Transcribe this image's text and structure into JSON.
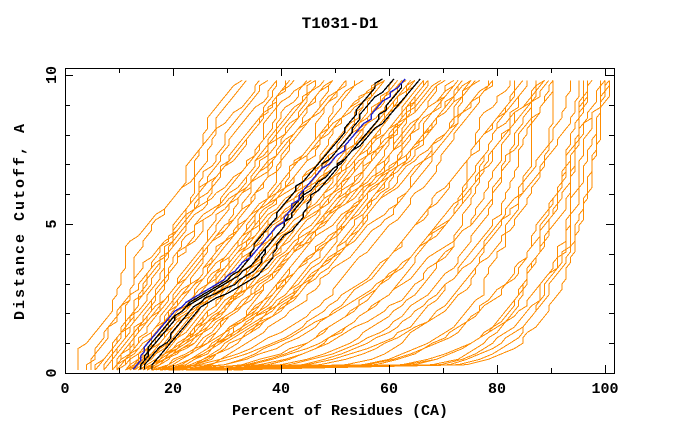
{
  "chart_data": {
    "type": "line",
    "title": "T1031-D1",
    "xlabel": "Percent of Residues (CA)",
    "ylabel": "Distance Cutoff, A",
    "xlim": [
      0,
      100
    ],
    "ylim": [
      0,
      10
    ],
    "grid": false,
    "legend": "none",
    "x_major_ticks": [
      0,
      20,
      40,
      60,
      80,
      100
    ],
    "x_minor_ticks": [
      10,
      30,
      50,
      70,
      90
    ],
    "y_major_ticks": [
      0,
      5,
      10
    ],
    "y_minor_ticks": [
      1,
      2,
      3,
      4,
      6,
      7,
      8,
      9
    ],
    "x_tick_labels": [
      "0",
      "20",
      "40",
      "60",
      "80",
      "100"
    ],
    "y_tick_labels": [
      "0",
      "5",
      "10"
    ],
    "colors": {
      "model_curves": "#ff8c00",
      "highlighted_curves": "#000000",
      "best_curve": "#2222cc",
      "axis": "#000000",
      "background": "#ffffff"
    },
    "bundle_base_points": [
      [
        0.12,
        13
      ],
      [
        0.5,
        14
      ],
      [
        1,
        16
      ],
      [
        1.5,
        18
      ],
      [
        2,
        20.5
      ],
      [
        2.5,
        24
      ],
      [
        3,
        29.5
      ],
      [
        3.5,
        33.5
      ],
      [
        4,
        35.5
      ],
      [
        4.5,
        37.5
      ],
      [
        5,
        40
      ],
      [
        5.5,
        41.5
      ],
      [
        6,
        43
      ],
      [
        6.5,
        45.5
      ],
      [
        7,
        48
      ],
      [
        7.5,
        51
      ],
      [
        8,
        53.5
      ],
      [
        8.5,
        56
      ],
      [
        9,
        58
      ],
      [
        9.4,
        60
      ],
      [
        9.9,
        62.5
      ]
    ],
    "highlighted_offsets": [
      [
        0.8,
        -3.2
      ],
      [
        1.2,
        -1.0
      ],
      [
        2.2,
        1.6
      ],
      [
        3.2,
        3.4
      ]
    ],
    "best_offsets": [
      [
        -0.8,
        0.6
      ]
    ],
    "model_curves": [
      [
        3,
        33,
        1.2
      ],
      [
        4,
        34,
        1.15
      ],
      [
        5,
        35,
        1.1
      ],
      [
        5,
        37,
        1.05
      ],
      [
        6,
        38,
        1.1
      ],
      [
        6,
        40,
        1.0
      ],
      [
        7,
        41,
        1.05
      ],
      [
        7,
        43,
        0.95
      ],
      [
        8,
        44,
        1.0
      ],
      [
        8,
        46,
        0.9
      ],
      [
        9,
        47,
        0.95
      ],
      [
        9,
        49,
        0.9
      ],
      [
        10,
        50,
        0.92
      ],
      [
        10,
        52,
        0.88
      ],
      [
        11,
        53,
        0.9
      ],
      [
        11,
        55,
        0.85
      ],
      [
        12,
        56,
        0.9
      ],
      [
        12,
        58,
        0.8
      ],
      [
        13,
        59,
        0.85
      ],
      [
        13,
        61,
        0.8
      ],
      [
        14,
        62,
        0.82
      ],
      [
        14,
        64,
        0.78
      ],
      [
        15,
        65,
        0.8
      ],
      [
        15,
        66,
        0.75
      ],
      [
        16,
        67,
        0.78
      ],
      [
        16,
        68,
        0.72
      ],
      [
        17,
        69,
        0.75
      ],
      [
        17,
        70,
        0.7
      ],
      [
        18,
        71,
        0.72
      ],
      [
        18,
        72,
        0.68
      ],
      [
        19,
        73,
        0.7
      ],
      [
        19,
        74,
        0.66
      ],
      [
        20,
        75,
        0.68
      ],
      [
        20,
        76,
        0.64
      ],
      [
        12,
        60,
        1.0
      ],
      [
        13,
        63,
        0.95
      ],
      [
        14,
        66,
        0.9
      ],
      [
        15,
        68,
        0.88
      ],
      [
        16,
        70,
        0.85
      ],
      [
        17,
        72,
        0.82
      ],
      [
        18,
        74,
        0.8
      ],
      [
        19,
        76,
        0.78
      ],
      [
        20,
        78,
        0.75
      ],
      [
        21,
        77,
        0.7
      ],
      [
        22,
        78,
        0.65
      ],
      [
        11,
        58,
        1.1
      ],
      [
        12,
        62,
        1.05
      ],
      [
        13,
        65,
        1.0
      ],
      [
        9,
        45,
        1.3
      ],
      [
        10,
        48,
        1.2
      ],
      [
        11,
        50,
        1.15
      ],
      [
        12,
        52,
        1.1
      ],
      [
        8,
        42,
        1.25
      ],
      [
        13,
        57,
        1.0
      ],
      [
        14,
        60,
        0.95
      ],
      [
        15,
        63,
        0.9
      ],
      [
        16,
        65,
        0.85
      ],
      [
        17,
        67,
        0.8
      ],
      [
        18,
        69,
        0.75
      ],
      [
        19,
        71,
        0.7
      ],
      [
        16,
        80,
        0.5
      ],
      [
        17,
        82,
        0.45
      ],
      [
        18,
        84,
        0.42
      ],
      [
        19,
        85,
        0.4
      ],
      [
        20,
        86,
        0.38
      ],
      [
        21,
        87,
        0.35
      ],
      [
        22,
        88,
        0.33
      ],
      [
        23,
        89,
        0.3
      ],
      [
        24,
        90,
        0.28
      ],
      [
        25,
        91,
        0.26
      ],
      [
        26,
        92,
        0.24
      ],
      [
        27,
        93,
        0.22
      ],
      [
        22,
        85,
        0.55
      ],
      [
        24,
        88,
        0.5
      ],
      [
        26,
        90,
        0.45
      ],
      [
        28,
        94,
        0.35
      ],
      [
        20,
        96,
        0.18
      ],
      [
        22,
        97,
        0.16
      ],
      [
        24,
        98,
        0.15
      ],
      [
        26,
        99,
        0.14
      ],
      [
        28,
        100,
        0.13
      ],
      [
        30,
        100,
        0.12
      ],
      [
        25,
        97,
        0.2
      ],
      [
        27,
        99,
        0.17
      ],
      [
        29,
        101,
        0.12
      ],
      [
        31,
        100,
        0.15
      ]
    ]
  }
}
